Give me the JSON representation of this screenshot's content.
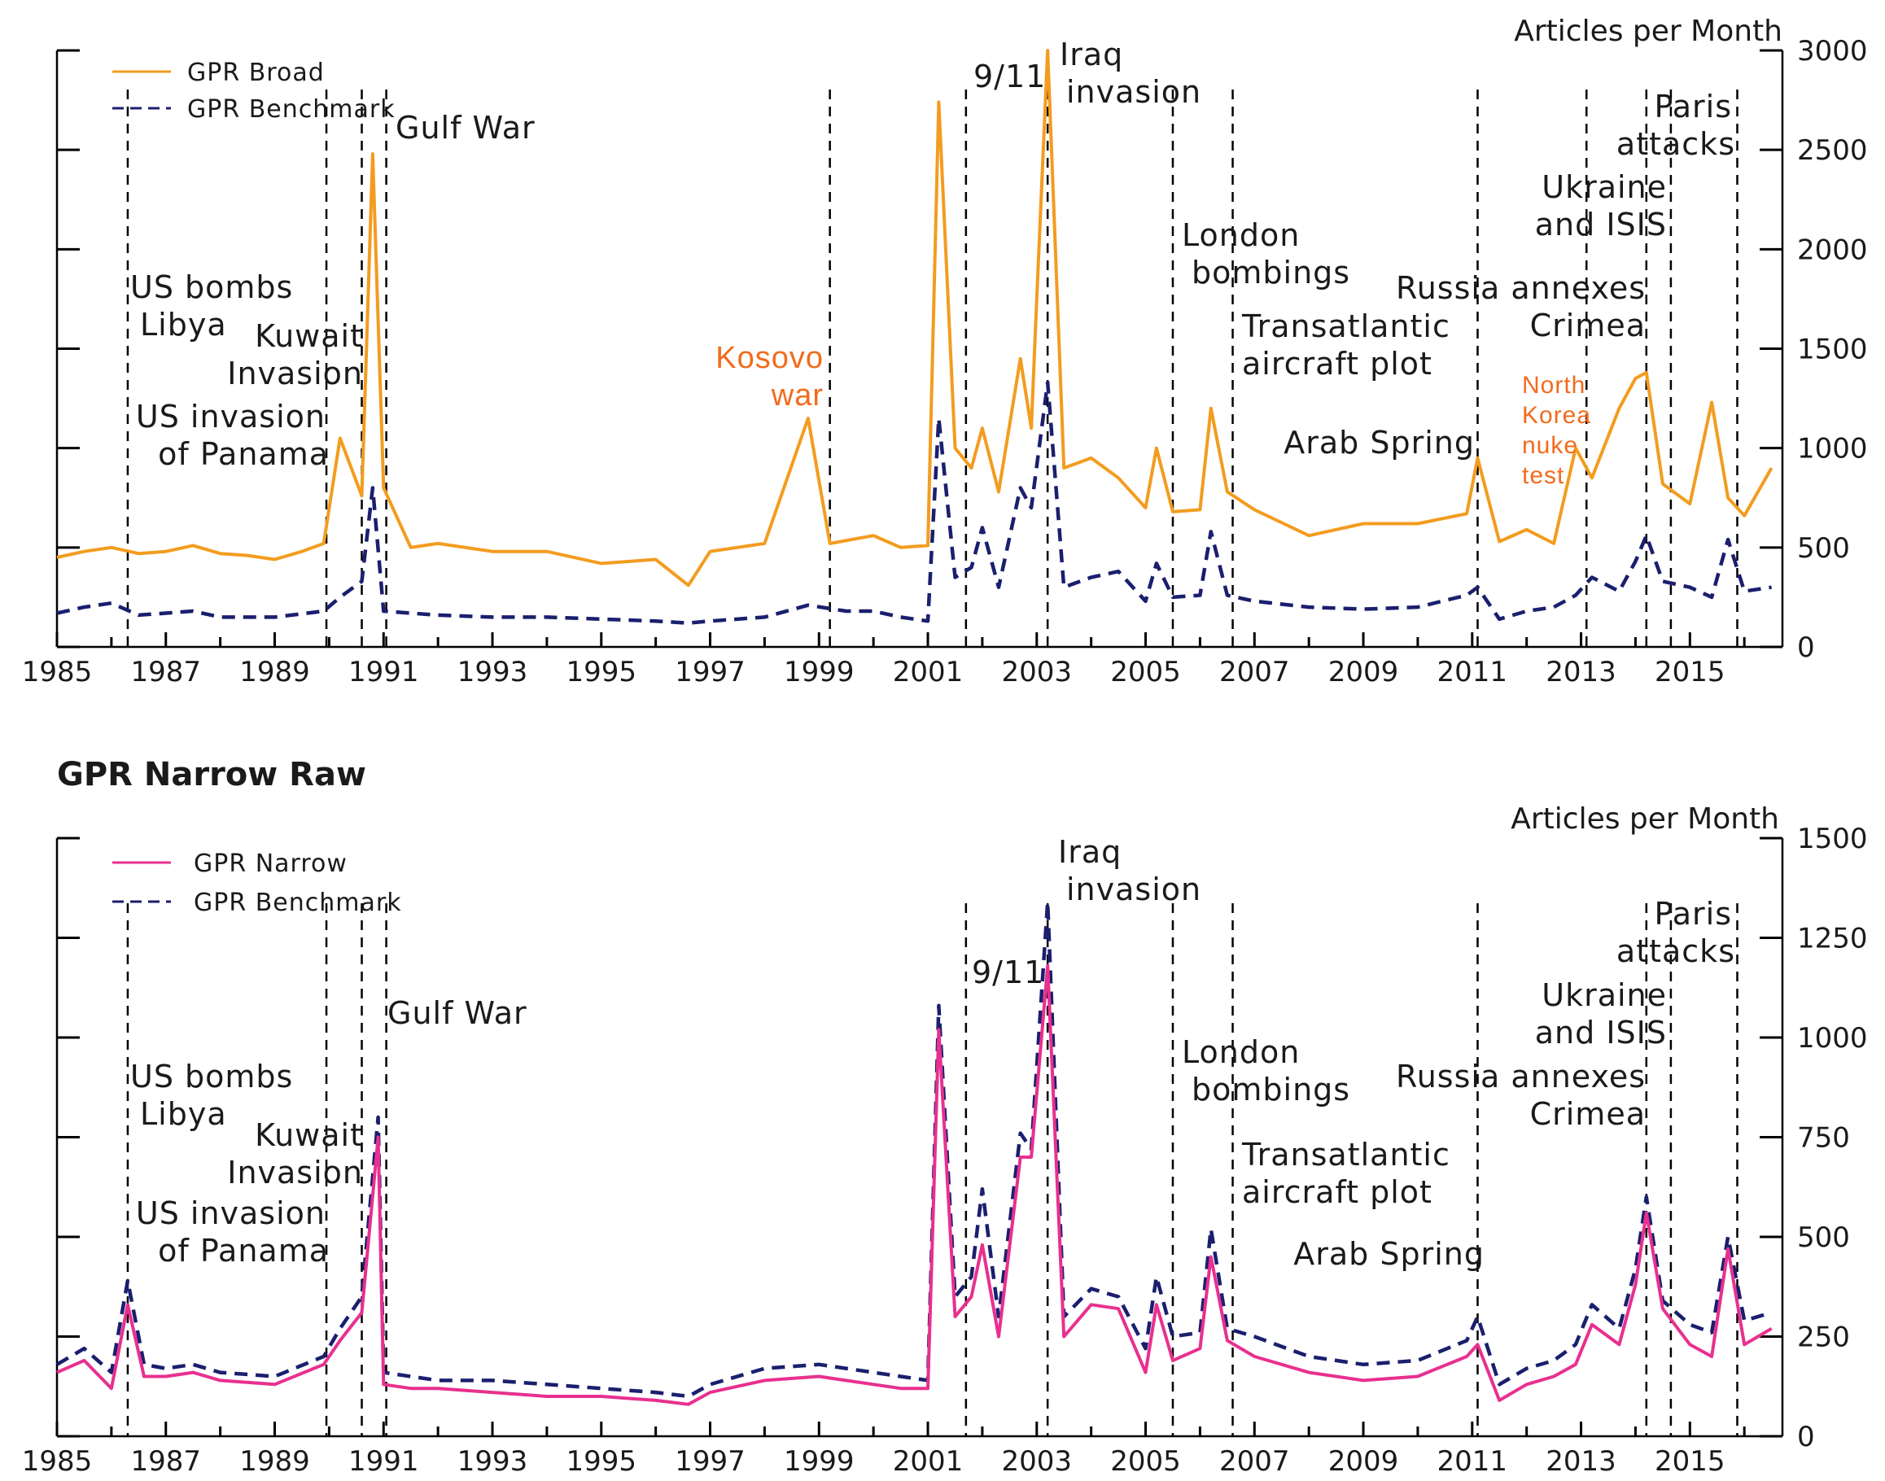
{
  "chart_data": [
    {
      "type": "line",
      "title": "",
      "ylabel": "Articles per Month",
      "xlim": [
        1985,
        2016.7
      ],
      "ylim": [
        0,
        3000
      ],
      "y_ticks": [
        0,
        500,
        1000,
        1500,
        2000,
        2500,
        3000
      ],
      "x_tick_labels": [
        "1985",
        "1987",
        "1989",
        "1991",
        "1993",
        "1995",
        "1997",
        "1999",
        "2001",
        "2003",
        "2005",
        "2007",
        "2009",
        "2011",
        "2013",
        "2015"
      ],
      "legend": "top-left",
      "grid": false,
      "series": [
        {
          "name": "GPR Broad",
          "color": "#f39c1f",
          "style": "solid",
          "x": [
            1985.0,
            1985.5,
            1986.0,
            1986.5,
            1987.0,
            1987.5,
            1988.0,
            1988.5,
            1989.0,
            1989.5,
            1989.9,
            1990.2,
            1990.6,
            1990.8,
            1991.0,
            1991.5,
            1992.0,
            1993.0,
            1994.0,
            1995.0,
            1996.0,
            1996.6,
            1997.0,
            1998.0,
            1998.8,
            1999.2,
            2000.0,
            2000.5,
            2001.0,
            2001.2,
            2001.5,
            2001.8,
            2002.0,
            2002.3,
            2002.7,
            2002.9,
            2003.0,
            2003.2,
            2003.5,
            2004.0,
            2004.5,
            2005.0,
            2005.2,
            2005.5,
            2006.0,
            2006.2,
            2006.5,
            2007.0,
            2008.0,
            2009.0,
            2010.0,
            2010.9,
            2011.1,
            2011.5,
            2012.0,
            2012.5,
            2012.9,
            2013.2,
            2013.7,
            2014.0,
            2014.2,
            2014.5,
            2015.0,
            2015.4,
            2015.7,
            2016.0,
            2016.5
          ],
          "values": [
            450,
            480,
            500,
            470,
            480,
            510,
            470,
            460,
            440,
            480,
            520,
            1050,
            760,
            2480,
            800,
            500,
            520,
            480,
            480,
            420,
            440,
            310,
            480,
            520,
            1150,
            520,
            560,
            500,
            510,
            2740,
            1000,
            900,
            1100,
            780,
            1450,
            1100,
            1750,
            3000,
            900,
            950,
            850,
            700,
            1000,
            680,
            690,
            1200,
            780,
            690,
            560,
            620,
            620,
            670,
            950,
            530,
            590,
            520,
            1000,
            850,
            1200,
            1350,
            1380,
            820,
            720,
            1230,
            750,
            660,
            900
          ]
        },
        {
          "name": "GPR Benchmark",
          "color": "#1a1f6e",
          "style": "dashed",
          "x": [
            1985.0,
            1985.5,
            1986.0,
            1986.5,
            1987.0,
            1987.5,
            1988.0,
            1989.0,
            1989.9,
            1990.2,
            1990.6,
            1990.8,
            1991.0,
            1991.5,
            1992.0,
            1993.0,
            1994.0,
            1995.0,
            1996.0,
            1996.6,
            1997.0,
            1998.0,
            1998.8,
            1999.5,
            2000.0,
            2000.5,
            2001.0,
            2001.2,
            2001.5,
            2001.8,
            2002.0,
            2002.3,
            2002.7,
            2002.9,
            2003.2,
            2003.5,
            2004.0,
            2004.5,
            2005.0,
            2005.2,
            2005.5,
            2006.0,
            2006.2,
            2006.5,
            2007.0,
            2008.0,
            2009.0,
            2010.0,
            2010.9,
            2011.1,
            2011.5,
            2012.0,
            2012.5,
            2012.9,
            2013.2,
            2013.7,
            2014.0,
            2014.2,
            2014.5,
            2015.0,
            2015.4,
            2015.7,
            2016.0,
            2016.5
          ],
          "values": [
            170,
            200,
            220,
            160,
            170,
            180,
            150,
            150,
            180,
            250,
            330,
            800,
            180,
            170,
            160,
            150,
            150,
            140,
            130,
            120,
            130,
            150,
            210,
            180,
            180,
            150,
            130,
            1150,
            350,
            400,
            600,
            300,
            800,
            700,
            1330,
            300,
            350,
            380,
            230,
            420,
            250,
            260,
            580,
            260,
            230,
            200,
            190,
            200,
            260,
            300,
            140,
            180,
            200,
            260,
            350,
            280,
            430,
            560,
            330,
            300,
            250,
            540,
            280,
            300
          ]
        }
      ],
      "annotations": [
        {
          "label": "US bombs Libya",
          "x": 1986.3
        },
        {
          "label": "US invasion of Panama",
          "x": 1989.95
        },
        {
          "label": "Kuwait Invasion",
          "x": 1990.6
        },
        {
          "label": "Gulf War",
          "x": 1991.05
        },
        {
          "label": "Kosovo war",
          "x": 1999.2
        },
        {
          "label": "9/11",
          "x": 2001.7
        },
        {
          "label": "Iraq invasion",
          "x": 2003.2
        },
        {
          "label": "London bombings",
          "x": 2005.5
        },
        {
          "label": "Transatlantic aircraft plot",
          "x": 2006.6
        },
        {
          "label": "Arab Spring",
          "x": 2011.1
        },
        {
          "label": "North Korea nuke test",
          "x": 2013.1
        },
        {
          "label": "Russia annexes Crimea",
          "x": 2014.2
        },
        {
          "label": "Ukraine and ISIS",
          "x": 2014.65
        },
        {
          "label": "Paris attacks",
          "x": 2015.87
        }
      ]
    },
    {
      "type": "line",
      "title": "GPR Narrow Raw",
      "ylabel": "Articles per Month",
      "xlim": [
        1985,
        2016.7
      ],
      "ylim": [
        0,
        1500
      ],
      "y_ticks": [
        0,
        250,
        500,
        750,
        1000,
        1250,
        1500
      ],
      "x_tick_labels": [
        "1985",
        "1987",
        "1989",
        "1991",
        "1993",
        "1995",
        "1997",
        "1999",
        "2001",
        "2003",
        "2005",
        "2007",
        "2009",
        "2011",
        "2013",
        "2015"
      ],
      "legend": "top-left",
      "grid": false,
      "series": [
        {
          "name": "GPR Narrow",
          "color": "#e8308f",
          "style": "solid",
          "x": [
            1985.0,
            1985.5,
            1986.0,
            1986.3,
            1986.6,
            1987.0,
            1987.5,
            1988.0,
            1989.0,
            1989.9,
            1990.2,
            1990.6,
            1990.9,
            1991.0,
            1991.5,
            1992.0,
            1993.0,
            1994.0,
            1995.0,
            1996.0,
            1996.6,
            1997.0,
            1998.0,
            1999.0,
            2000.0,
            2000.5,
            2001.0,
            2001.2,
            2001.5,
            2001.8,
            2002.0,
            2002.3,
            2002.7,
            2002.9,
            2003.2,
            2003.5,
            2004.0,
            2004.5,
            2005.0,
            2005.2,
            2005.5,
            2006.0,
            2006.2,
            2006.5,
            2007.0,
            2008.0,
            2009.0,
            2010.0,
            2010.9,
            2011.1,
            2011.5,
            2012.0,
            2012.5,
            2012.9,
            2013.2,
            2013.7,
            2014.0,
            2014.2,
            2014.5,
            2015.0,
            2015.4,
            2015.7,
            2016.0,
            2016.5
          ],
          "values": [
            160,
            190,
            120,
            330,
            150,
            150,
            160,
            140,
            130,
            180,
            240,
            310,
            750,
            130,
            120,
            120,
            110,
            100,
            100,
            90,
            80,
            110,
            140,
            150,
            130,
            120,
            120,
            1020,
            300,
            350,
            480,
            250,
            700,
            700,
            1180,
            250,
            330,
            320,
            160,
            330,
            190,
            220,
            450,
            240,
            200,
            160,
            140,
            150,
            200,
            230,
            90,
            130,
            150,
            180,
            280,
            230,
            380,
            560,
            320,
            230,
            200,
            470,
            230,
            270
          ]
        },
        {
          "name": "GPR Benchmark",
          "color": "#1a1f6e",
          "style": "dashed",
          "x": [
            1985.0,
            1985.5,
            1986.0,
            1986.3,
            1986.6,
            1987.0,
            1987.5,
            1988.0,
            1989.0,
            1989.9,
            1990.2,
            1990.6,
            1990.9,
            1991.0,
            1991.5,
            1992.0,
            1993.0,
            1994.0,
            1995.0,
            1996.0,
            1996.6,
            1997.0,
            1998.0,
            1999.0,
            2000.0,
            2000.5,
            2001.0,
            2001.2,
            2001.5,
            2001.8,
            2002.0,
            2002.3,
            2002.7,
            2002.9,
            2003.2,
            2003.5,
            2004.0,
            2004.5,
            2005.0,
            2005.2,
            2005.5,
            2006.0,
            2006.2,
            2006.5,
            2007.0,
            2008.0,
            2009.0,
            2010.0,
            2010.9,
            2011.1,
            2011.5,
            2012.0,
            2012.5,
            2012.9,
            2013.2,
            2013.7,
            2014.0,
            2014.2,
            2014.5,
            2015.0,
            2015.4,
            2015.7,
            2016.0,
            2016.5
          ],
          "values": [
            180,
            220,
            160,
            390,
            180,
            170,
            180,
            160,
            150,
            200,
            270,
            350,
            800,
            160,
            150,
            140,
            140,
            130,
            120,
            110,
            100,
            130,
            170,
            180,
            160,
            150,
            140,
            1080,
            350,
            400,
            620,
            300,
            760,
            720,
            1340,
            300,
            370,
            350,
            220,
            400,
            250,
            260,
            520,
            270,
            250,
            200,
            180,
            190,
            240,
            300,
            130,
            170,
            190,
            230,
            330,
            270,
            420,
            600,
            340,
            280,
            260,
            500,
            290,
            310
          ]
        }
      ],
      "annotations": [
        {
          "label": "US bombs Libya",
          "x": 1986.3
        },
        {
          "label": "US invasion of Panama",
          "x": 1989.95
        },
        {
          "label": "Kuwait Invasion",
          "x": 1990.6
        },
        {
          "label": "Gulf War",
          "x": 1991.05
        },
        {
          "label": "9/11",
          "x": 2001.7
        },
        {
          "label": "Iraq invasion",
          "x": 2003.2
        },
        {
          "label": "London bombings",
          "x": 2005.5
        },
        {
          "label": "Transatlantic aircraft plot",
          "x": 2006.6
        },
        {
          "label": "Arab Spring",
          "x": 2011.1
        },
        {
          "label": "Russia annexes Crimea",
          "x": 2014.2
        },
        {
          "label": "Ukraine and ISIS",
          "x": 2014.65
        },
        {
          "label": "Paris attacks",
          "x": 2015.87
        }
      ]
    }
  ]
}
